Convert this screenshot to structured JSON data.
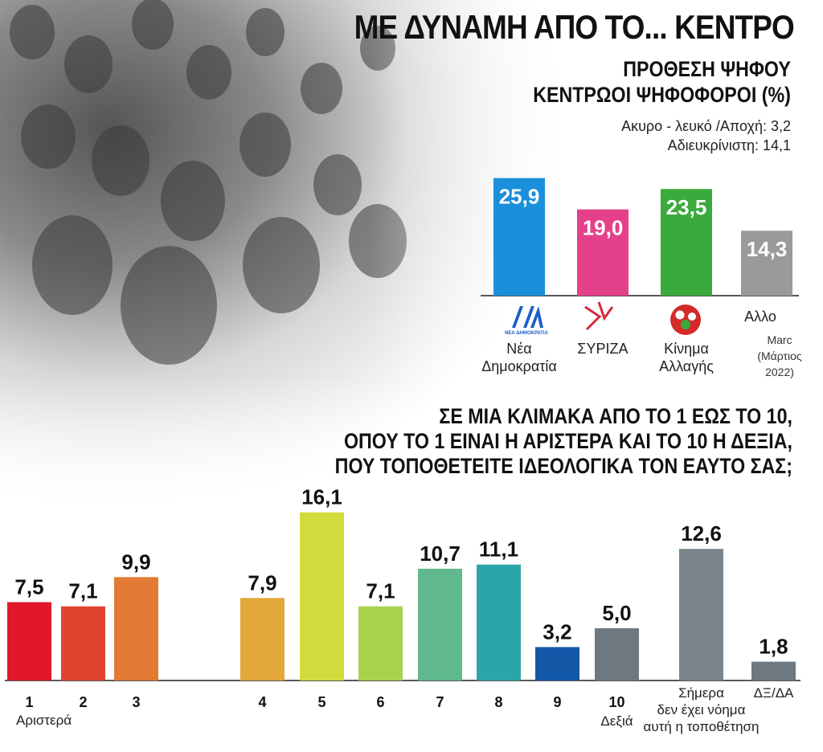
{
  "header": {
    "title": "ΜΕ ΔΥΝΑΜΗ ΑΠΟ ΤΟ... ΚΕΝΤΡΟ",
    "subtitle_line1": "ΠΡΟΘΕΣΗ ΨΗΦΟΥ",
    "subtitle_line2": "ΚΕΝΤΡΩΟΙ ΨΗΦΟΦΟΡΟΙ (%)",
    "note_line1": "Ακυρο - λευκό /Αποχή: 3,2",
    "note_line2": "Αδιευκρίνιστη: 14,1",
    "question_line1": "ΣΕ ΜΙΑ ΚΛΙΜΑΚΑ ΑΠΟ ΤΟ 1 ΕΩΣ ΤΟ 10,",
    "question_line2": "ΟΠΟΥ ΤΟ 1 ΕΙΝΑΙ Η ΑΡΙΣΤΕΡΑ ΚΑΙ ΤΟ 10 Η ΔΕΞΙΑ,",
    "question_line3": "ΠΟΥ ΤΟΠΟΘΕΤΕΙΤΕ ΙΔΕΟΛΟΓΙΚΑ ΤΟΝ ΕΑΥΤΟ ΣΑΣ;",
    "source_line1": "Marc",
    "source_line2": "(Μάρτιος",
    "source_line3": "2022)"
  },
  "chart_data": [
    {
      "type": "bar",
      "title": "ΠΡΟΘΕΣΗ ΨΗΦΟΥ ΚΕΝΤΡΩΟΙ ΨΗΦΟΦΟΡΟΙ (%)",
      "categories": [
        "Νέα Δημοκρατία",
        "ΣΥΡΙΖΑ",
        "Κίνημα Αλλαγής",
        "Αλλο"
      ],
      "label_lines": [
        [
          "Νέα",
          "Δημοκρατία"
        ],
        [
          "ΣΥΡΙΖΑ"
        ],
        [
          "Κίνημα",
          "Αλλαγής"
        ],
        [
          "Αλλο"
        ]
      ],
      "values": [
        25.9,
        19.0,
        23.5,
        14.3
      ],
      "value_labels": [
        "25,9",
        "19,0",
        "23,5",
        "14,3"
      ],
      "colors": [
        "#1a8fdc",
        "#e5408a",
        "#3aaa3c",
        "#9a9a9a"
      ],
      "logo_text": "ΝΕΑ ΔΗΜΟΚΡΑΤΙΑ",
      "ylim": [
        0,
        30
      ]
    },
    {
      "type": "bar",
      "title": "ΣΕ ΜΙΑ ΚΛΙΜΑΚΑ ΑΠΟ ΤΟ 1 ΕΩΣ ΤΟ 10, ΟΠΟΥ ΤΟ 1 ΕΙΝΑΙ Η ΑΡΙΣΤΕΡΑ ΚΑΙ ΤΟ 10 Η ΔΕΞΙΑ, ΠΟΥ ΤΟΠΟΘΕΤΕΙΤΕ ΙΔΕΟΛΟΓΙΚΑ ΤΟΝ ΕΑΥΤΟ ΣΑΣ;",
      "categories": [
        "1",
        "2",
        "3",
        "4",
        "5",
        "6",
        "7",
        "8",
        "9",
        "10",
        "Σήμερα δεν έχει νόημα αυτή η τοποθέτηση",
        "ΔΞ/ΔΑ"
      ],
      "tick_labels": [
        "1",
        "2",
        "3",
        "4",
        "5",
        "6",
        "7",
        "8",
        "9",
        "10",
        "",
        ""
      ],
      "sub_labels": [
        [
          "Αριστερά"
        ],
        [],
        [],
        [],
        [],
        [],
        [],
        [],
        [],
        [
          "Δεξιά"
        ],
        [
          "Σήμερα",
          "δεν έχει νόημα",
          "αυτή η τοποθέτηση"
        ],
        [
          "ΔΞ/ΔΑ"
        ]
      ],
      "values": [
        7.5,
        7.1,
        9.9,
        7.9,
        16.1,
        7.1,
        10.7,
        11.1,
        3.2,
        5.0,
        12.6,
        1.8
      ],
      "value_labels": [
        "7,5",
        "7,1",
        "9,9",
        "7,9",
        "16,1",
        "7,1",
        "10,7",
        "11,1",
        "3,2",
        "5,0",
        "12,6",
        "1,8"
      ],
      "colors": [
        "#e0182a",
        "#e0442e",
        "#e27a33",
        "#e3a83a",
        "#d1dc3c",
        "#a9d24c",
        "#60b98d",
        "#2aa6a8",
        "#1458a8",
        "#6d7880",
        "#7a858c",
        "#6d7880"
      ],
      "ylim": [
        0,
        18
      ]
    }
  ]
}
